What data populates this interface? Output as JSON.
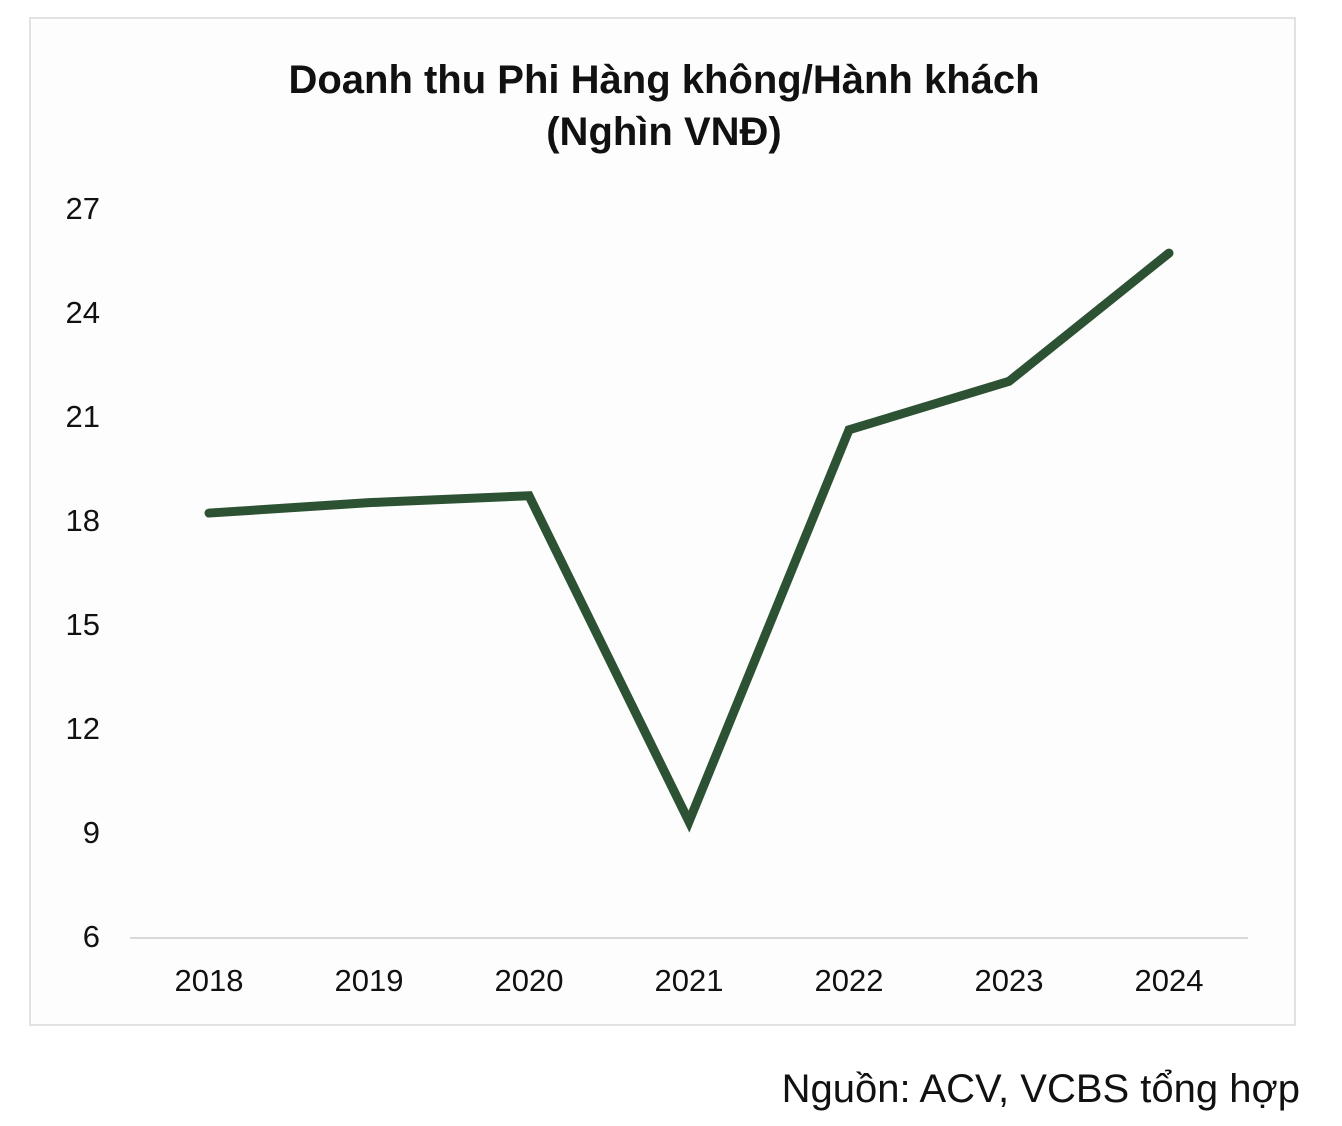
{
  "chart_data": {
    "type": "line",
    "title": "Doanh thu Phi Hàng không/Hành khách",
    "subtitle": "(Nghìn VNĐ)",
    "xlabel": "",
    "ylabel": "",
    "categories": [
      "2018",
      "2019",
      "2020",
      "2021",
      "2022",
      "2023",
      "2024"
    ],
    "series": [
      {
        "values": [
          18.2,
          18.5,
          18.7,
          9.3,
          20.6,
          22.0,
          25.7
        ],
        "color": "#2d5233"
      }
    ],
    "ylim": [
      6,
      27
    ],
    "yticks": [
      "27",
      "24",
      "21",
      "18",
      "15",
      "12",
      "9",
      "6"
    ],
    "grid": false,
    "legend": "none"
  },
  "source_note": "Nguồn: ACV, VCBS tổng hợp"
}
